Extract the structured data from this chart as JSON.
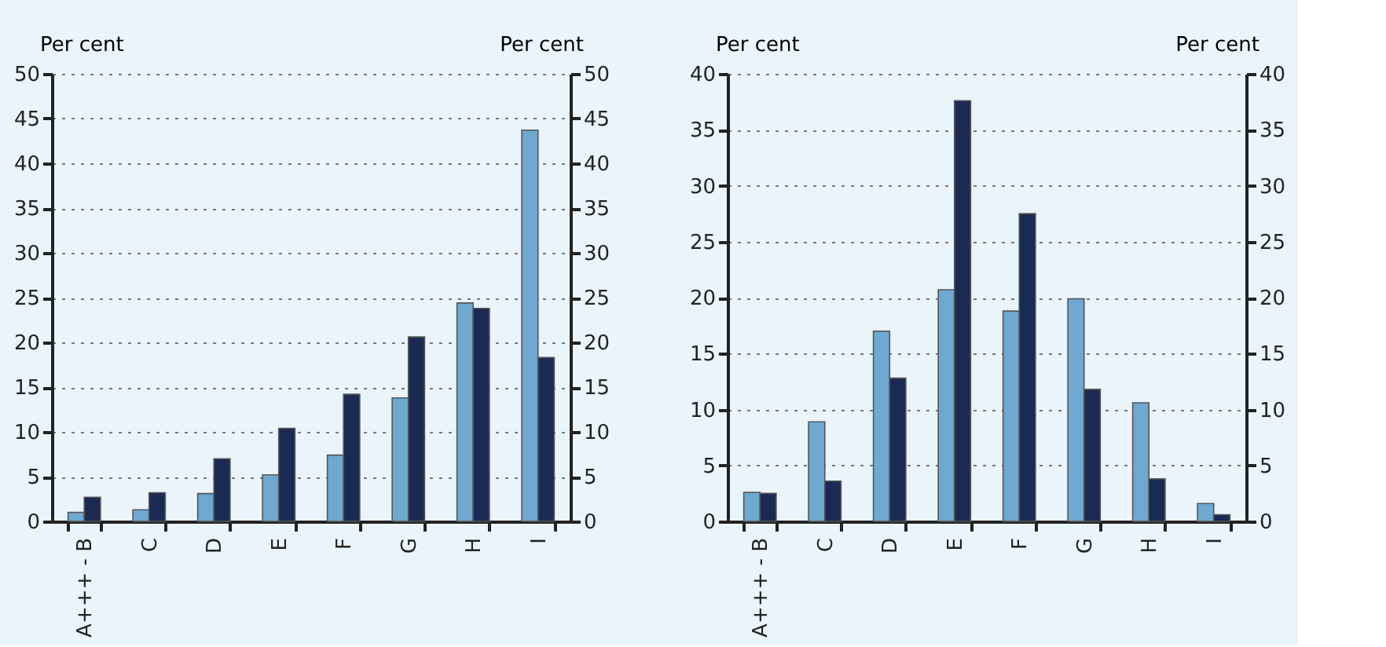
{
  "chart_data": [
    {
      "type": "bar",
      "ylabel": "Per cent",
      "y2label": "Per cent",
      "categories": [
        "A+++ - B",
        "C",
        "D",
        "E",
        "F",
        "G",
        "H",
        "I"
      ],
      "series": [
        {
          "color": "#6fa8d0",
          "values": [
            1.0,
            1.3,
            3.1,
            5.2,
            7.4,
            13.8,
            24.4,
            43.7
          ]
        },
        {
          "color": "#1b2a52",
          "values": [
            2.7,
            3.2,
            7.0,
            10.4,
            14.2,
            20.6,
            23.8,
            18.3
          ]
        }
      ],
      "ylim": [
        0,
        50
      ],
      "yticks": [
        0,
        5,
        10,
        15,
        20,
        25,
        30,
        35,
        40,
        45,
        50
      ],
      "y2lim": [
        0,
        50
      ],
      "y2ticks": [
        0,
        5,
        10,
        15,
        20,
        25,
        30,
        35,
        40,
        45,
        50
      ],
      "grid": "y",
      "legend": false
    },
    {
      "type": "bar",
      "ylabel": "Per cent",
      "y2label": "Per cent",
      "categories": [
        "A+++ - B",
        "C",
        "D",
        "E",
        "F",
        "G",
        "H",
        "I"
      ],
      "series": [
        {
          "color": "#6fa8d0",
          "values": [
            2.6,
            8.9,
            17.0,
            20.7,
            18.8,
            19.9,
            10.6,
            1.6
          ]
        },
        {
          "color": "#1b2a52",
          "values": [
            2.5,
            3.6,
            12.8,
            37.6,
            27.5,
            11.8,
            3.8,
            0.6
          ]
        }
      ],
      "ylim": [
        0,
        40
      ],
      "yticks": [
        0,
        5,
        10,
        15,
        20,
        25,
        30,
        35,
        40
      ],
      "y2lim": [
        0,
        40
      ],
      "y2ticks": [
        0,
        5,
        10,
        15,
        20,
        25,
        30,
        35,
        40
      ],
      "grid": "y",
      "legend": false
    }
  ]
}
